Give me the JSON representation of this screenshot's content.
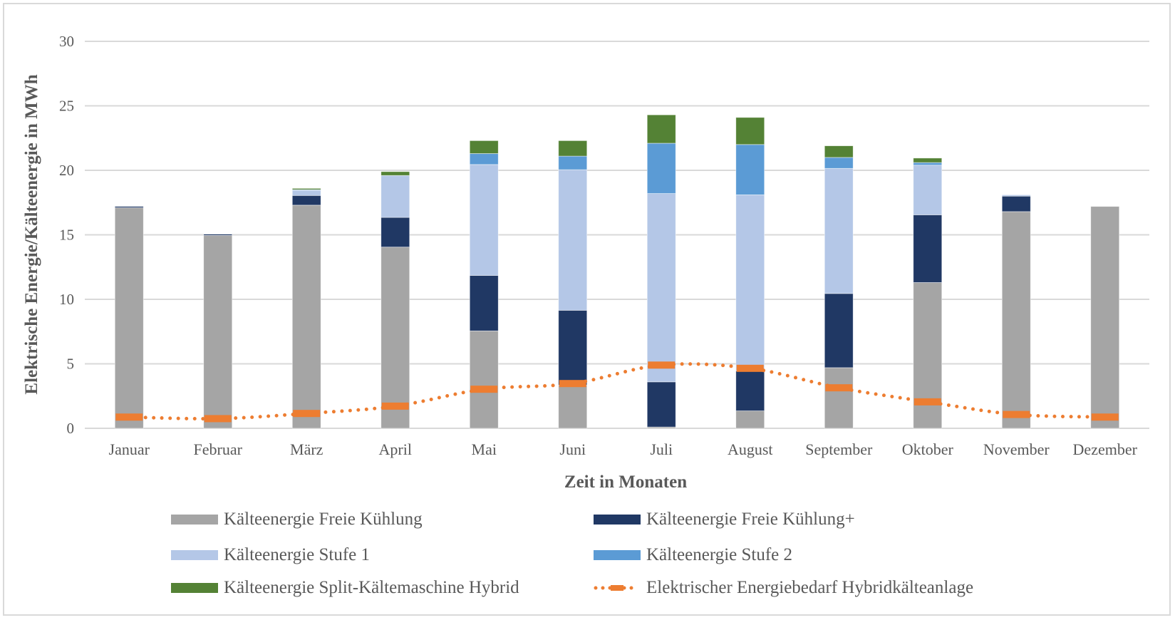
{
  "chart_data": {
    "type": "bar",
    "stacked": true,
    "xlabel": "Zeit in Monaten",
    "ylabel": "Elektrische Energie/Kälteenergie in MWh",
    "ylim": [
      0,
      30
    ],
    "yticks": [
      "0",
      "5",
      "10",
      "15",
      "20",
      "25",
      "30"
    ],
    "grid": true,
    "legend_position": "bottom",
    "categories": [
      "Januar",
      "Februar",
      "März",
      "April",
      "Mai",
      "Juni",
      "Juli",
      "August",
      "September",
      "Oktober",
      "November",
      "Dezember"
    ],
    "series": [
      {
        "name": "Kälteenergie Freie Kühlung",
        "type": "bar",
        "color": "#a5a5a5",
        "values": [
          17.1,
          14.95,
          17.3,
          14.05,
          7.55,
          3.35,
          0.1,
          1.35,
          4.7,
          11.3,
          16.8,
          17.2
        ]
      },
      {
        "name": "Kälteenergie Freie Kühlung+",
        "type": "bar",
        "color": "#203864",
        "values": [
          0.1,
          0.1,
          0.75,
          2.3,
          4.3,
          5.8,
          3.5,
          3.1,
          5.75,
          5.25,
          1.2,
          0
        ]
      },
      {
        "name": "Kälteenergie Stufe 1",
        "type": "bar",
        "color": "#b4c7e7",
        "values": [
          0,
          0,
          0.4,
          3.25,
          8.6,
          10.9,
          14.6,
          13.65,
          9.7,
          3.85,
          0.1,
          0
        ]
      },
      {
        "name": "Kälteenergie Stufe 2",
        "type": "bar",
        "color": "#5b9bd5",
        "values": [
          0,
          0,
          0.05,
          0,
          0.85,
          1.05,
          3.9,
          3.9,
          0.85,
          0.2,
          0,
          0
        ]
      },
      {
        "name": "Kälteenergie Split-Kältemaschine Hybrid",
        "type": "bar",
        "color": "#548235",
        "values": [
          0,
          0,
          0.1,
          0.3,
          1.0,
          1.2,
          2.2,
          2.1,
          0.9,
          0.35,
          0,
          0
        ]
      },
      {
        "name": "Elektrischer Energiebedarf Hybridkälteanlage",
        "type": "line",
        "style": "dotted",
        "color": "#ed7d31",
        "values": [
          0.87,
          0.75,
          1.15,
          1.72,
          3.03,
          3.47,
          4.9,
          4.65,
          3.14,
          2.05,
          1.07,
          0.87
        ]
      }
    ]
  }
}
